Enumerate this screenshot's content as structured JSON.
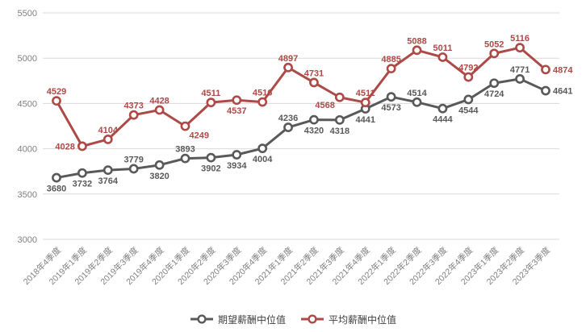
{
  "chart_data": {
    "type": "line",
    "categories": [
      "2018年4季度",
      "2019年1季度",
      "2019年2季度",
      "2019年3季度",
      "2019年4季度",
      "2020年1季度",
      "2020年2季度",
      "2020年3季度",
      "2020年4季度",
      "2021年1季度",
      "2021年2季度",
      "2021年3季度",
      "2021年4季度",
      "2022年1季度",
      "2022年2季度",
      "2022年3季度",
      "2022年4季度",
      "2023年1季度",
      "2023年2季度",
      "2023年3季度"
    ],
    "series": [
      {
        "name": "期望薪酬中位值",
        "color": "#595959",
        "values": [
          3680,
          3732,
          3764,
          3779,
          3820,
          3893,
          3902,
          3934,
          4004,
          4236,
          4320,
          4318,
          4441,
          4573,
          4514,
          4444,
          4544,
          4724,
          4771,
          4641
        ],
        "label_positions": [
          "below",
          "below",
          "below",
          "above",
          "below",
          "above",
          "below",
          "below",
          "below",
          "above",
          "below",
          "below",
          "below",
          "below",
          "above",
          "below",
          "below",
          "below",
          "above",
          "right"
        ]
      },
      {
        "name": "平均薪酬中位值",
        "color": "#ab4a47",
        "values": [
          4529,
          4028,
          4104,
          4373,
          4428,
          4249,
          4511,
          4537,
          4516,
          4897,
          4731,
          4568,
          4511,
          4885,
          5088,
          5011,
          4792,
          5052,
          5116,
          4874
        ],
        "label_positions": [
          "above",
          "left",
          "above",
          "above",
          "above",
          "below-right",
          "above",
          "below",
          "above",
          "above",
          "above",
          "below-left",
          "above",
          "above",
          "above",
          "above",
          "above",
          "above",
          "above",
          "right"
        ]
      }
    ],
    "ylim": [
      3000,
      5500
    ],
    "yticks": [
      3000,
      3500,
      4000,
      4500,
      5000,
      5500
    ],
    "grid": true,
    "legend_position": "bottom"
  },
  "colors": {
    "grid": "#d9d9d9",
    "axis_text": "#7f7f7f",
    "background": "#ffffff",
    "legend_text": "#3f3f3f"
  }
}
